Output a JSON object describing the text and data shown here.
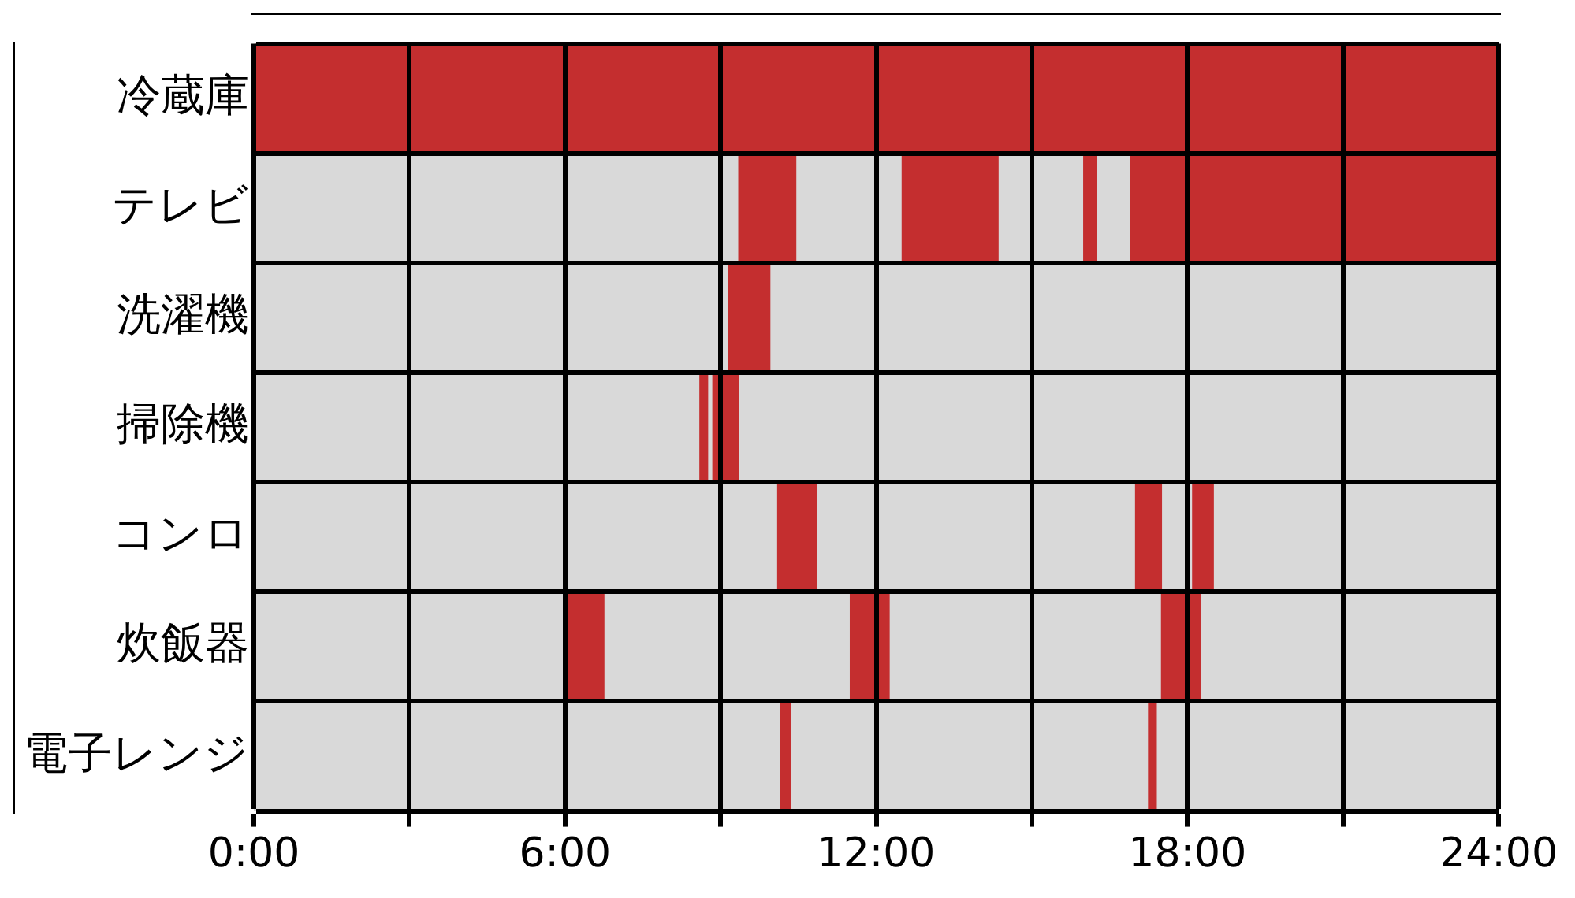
{
  "chart_data": {
    "type": "bar",
    "orientation": "horizontal",
    "categories": [
      "冷蔵庫",
      "テレビ",
      "洗濯機",
      "掃除機",
      "コンロ",
      "炊飯器",
      "電子レンジ"
    ],
    "series": [
      {
        "color": "#c42e2f",
        "base": [
          0,
          9.35,
          9.15,
          8.6,
          10.1,
          6.0,
          10.15
        ],
        "values": [
          24,
          1.1,
          0.8,
          0.15,
          0.75,
          0.75,
          0.2
        ]
      },
      {
        "color": "#c42e2f",
        "base": [
          null,
          12.5,
          null,
          8.85,
          17.0,
          11.5,
          17.25
        ],
        "values": [
          null,
          1.85,
          null,
          0.1,
          0.5,
          0.75,
          0.15
        ]
      },
      {
        "color": "#c42e2f",
        "base": [
          null,
          16.0,
          null,
          9.0,
          18.1,
          17.5,
          null
        ],
        "values": [
          null,
          0.25,
          null,
          0.35,
          0.4,
          0.75,
          null
        ]
      },
      {
        "color": "#c42e2f",
        "base": [
          null,
          16.9,
          null,
          null,
          null,
          null,
          null
        ],
        "values": [
          null,
          7.1,
          null,
          null,
          null,
          null,
          null
        ]
      }
    ],
    "xlim": [
      0,
      24
    ],
    "xticks": [
      {
        "value": 0,
        "label": "0:00"
      },
      {
        "value": 3,
        "label": null
      },
      {
        "value": 6,
        "label": "6:00"
      },
      {
        "value": 9,
        "label": null
      },
      {
        "value": 12,
        "label": "12:00"
      },
      {
        "value": 15,
        "label": null
      },
      {
        "value": 18,
        "label": "18:00"
      },
      {
        "value": 21,
        "label": null
      },
      {
        "value": 24,
        "label": "24:00"
      }
    ],
    "grid": true,
    "legend": false
  }
}
